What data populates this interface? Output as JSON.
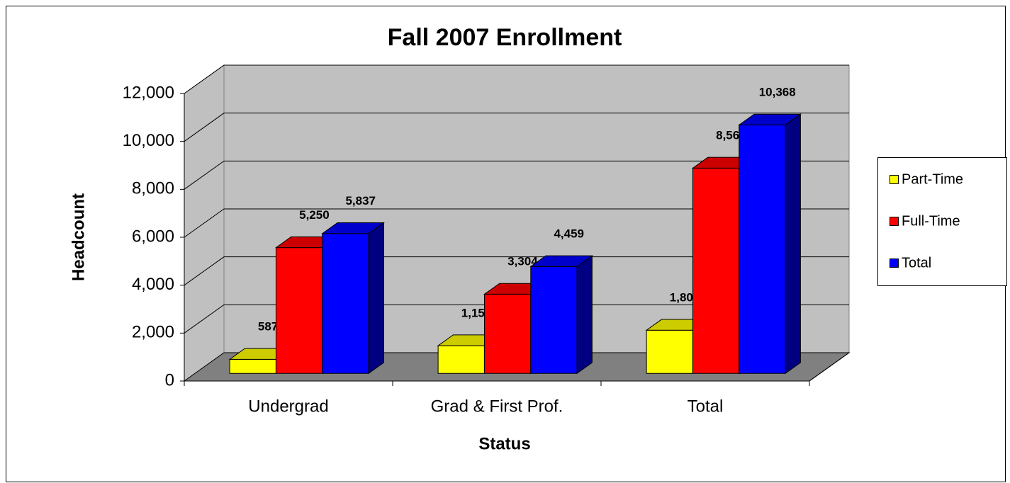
{
  "chart_data": {
    "type": "bar3d",
    "title": "Fall 2007 Enrollment",
    "x_label": "Status",
    "y_label": "Headcount",
    "categories": [
      "Undergrad",
      "Grad & First Prof.",
      "Total"
    ],
    "series": [
      {
        "name": "Part-Time",
        "color": "#ffff00",
        "values": [
          587,
          1155,
          1802
        ],
        "value_labels": [
          "587",
          "1,155",
          "1,802"
        ]
      },
      {
        "name": "Full-Time",
        "color": "#ff0000",
        "values": [
          5250,
          3304,
          8566
        ],
        "value_labels": [
          "5,250",
          "3,304",
          "8,566"
        ]
      },
      {
        "name": "Total",
        "color": "#0000ff",
        "values": [
          5837,
          4459,
          10368
        ],
        "value_labels": [
          "5,837",
          "4,459",
          "10,368"
        ]
      }
    ],
    "ylim": [
      0,
      12000
    ],
    "yticks": [
      0,
      {
        "value": 2000,
        "label": "2,000"
      },
      {
        "value": 4000,
        "label": "4,000"
      },
      {
        "value": 6000,
        "label": "6,000"
      },
      {
        "value": 8000,
        "label": "8,000"
      },
      {
        "value": 10000,
        "label": "10,000"
      },
      {
        "value": 12000,
        "label": "12,000"
      }
    ],
    "grid": true,
    "legend": "right"
  }
}
